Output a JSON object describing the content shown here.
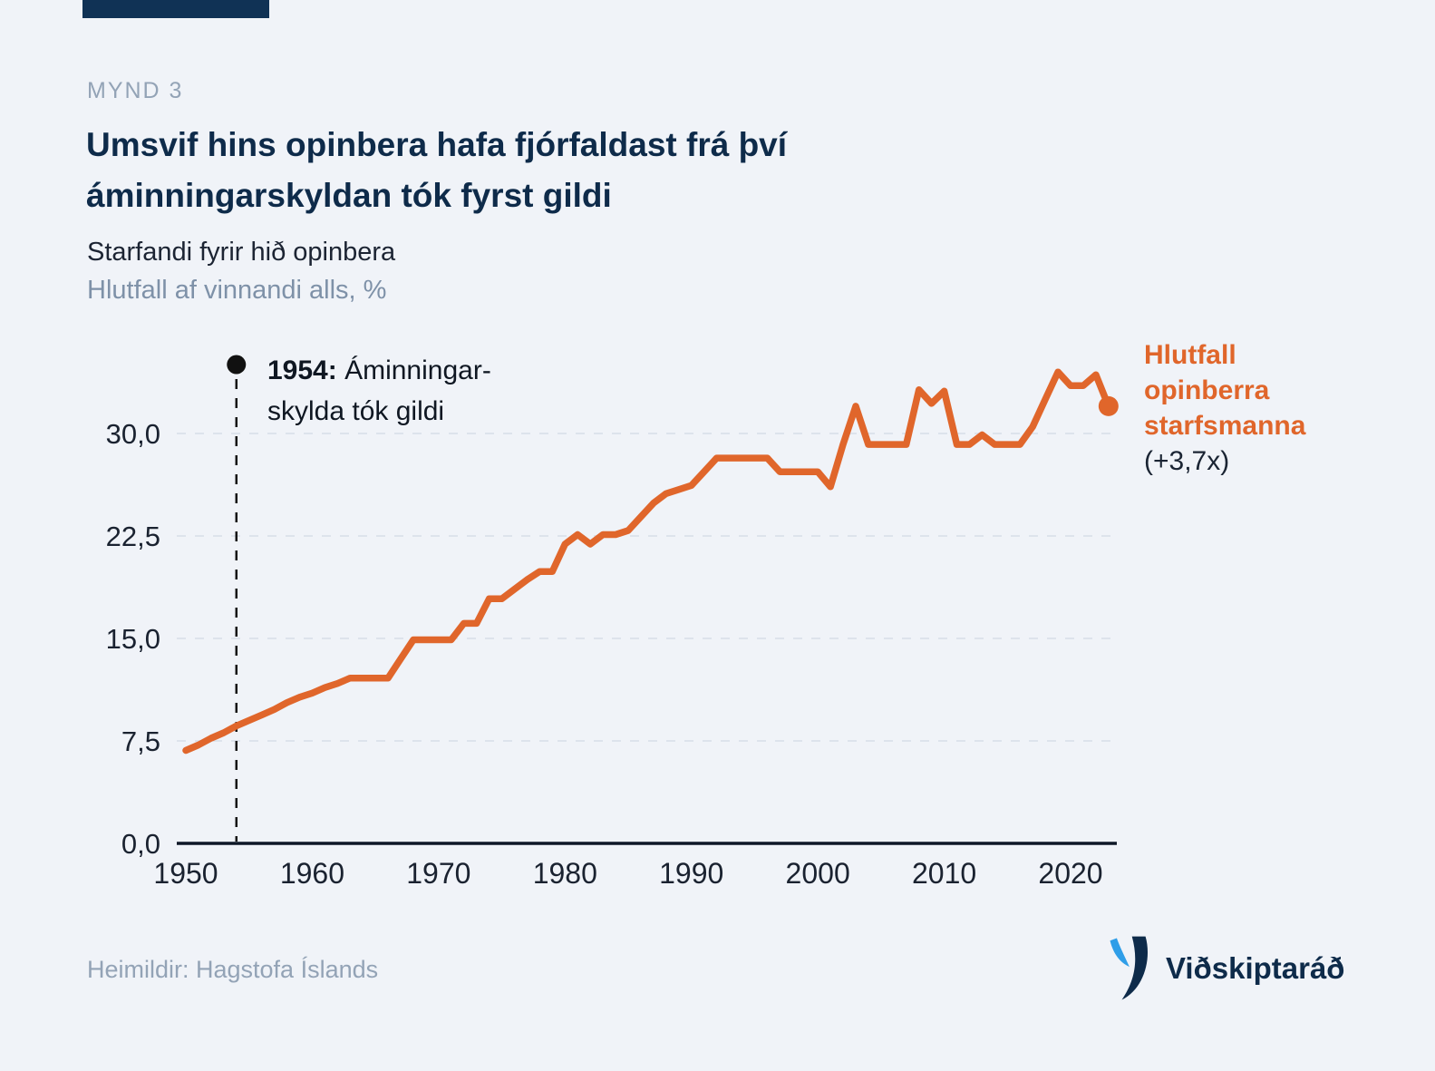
{
  "header": {
    "kicker": "MYND 3"
  },
  "footer": {
    "source": "Heimildir: Hagstofa Íslands"
  },
  "logo": {
    "text": "Viðskiptaráð"
  },
  "colors": {
    "navy": "#0e2b4a",
    "orange": "#E0662B",
    "background": "#f0f3f8",
    "grid": "#dde3ec",
    "axis": "#0e1827"
  },
  "chart_data": {
    "type": "line",
    "title": "Umsvif hins opinbera hafa fjórfaldast frá því áminningarskyldan tók fyrst gildi",
    "title_lines": [
      "Umsvif hins opinbera hafa fjórfaldast frá því",
      "áminningarskyldan tók fyrst gildi"
    ],
    "subtitle": "Starfandi fyrir hið opinbera",
    "ylabel": "Hlutfall af vinnandi alls, %",
    "series_name": "Hlutfall opinberra starfsmanna",
    "line_color": "#E0662B",
    "marker_color": "#111111",
    "grid": "horizontal dashed",
    "ylim": [
      0,
      35
    ],
    "yticks": [
      0,
      7.5,
      15,
      22.5,
      30
    ],
    "ytick_labels": [
      "0,0",
      "7,5",
      "15,0",
      "22,5",
      "30,0"
    ],
    "xticks": [
      1950,
      1960,
      1970,
      1980,
      1990,
      2000,
      2010,
      2020
    ],
    "x": [
      1950,
      1951,
      1952,
      1953,
      1954,
      1955,
      1956,
      1957,
      1958,
      1959,
      1960,
      1961,
      1962,
      1963,
      1964,
      1965,
      1966,
      1967,
      1968,
      1969,
      1970,
      1971,
      1972,
      1973,
      1974,
      1975,
      1976,
      1977,
      1978,
      1979,
      1980,
      1981,
      1982,
      1983,
      1984,
      1985,
      1986,
      1987,
      1988,
      1989,
      1990,
      1991,
      1992,
      1993,
      1994,
      1995,
      1996,
      1997,
      1998,
      1999,
      2000,
      2001,
      2002,
      2003,
      2004,
      2005,
      2006,
      2007,
      2008,
      2009,
      2010,
      2011,
      2012,
      2013,
      2014,
      2015,
      2016,
      2017,
      2018,
      2019,
      2020,
      2021,
      2022,
      2023
    ],
    "values": [
      6.8,
      7.2,
      7.7,
      8.1,
      8.6,
      9.0,
      9.4,
      9.8,
      10.3,
      10.7,
      11.0,
      11.4,
      11.7,
      12.1,
      12.1,
      12.1,
      12.1,
      13.5,
      14.9,
      14.9,
      14.9,
      14.9,
      16.1,
      16.1,
      17.9,
      17.9,
      18.6,
      19.3,
      19.9,
      19.9,
      21.9,
      22.6,
      21.9,
      22.6,
      22.6,
      22.9,
      23.9,
      24.9,
      25.6,
      25.9,
      26.2,
      27.2,
      28.2,
      28.2,
      28.2,
      28.2,
      28.2,
      27.2,
      27.2,
      27.2,
      27.2,
      26.1,
      29.2,
      32.0,
      29.2,
      29.2,
      29.2,
      29.2,
      33.2,
      32.2,
      33.1,
      29.2,
      29.2,
      29.9,
      29.2,
      29.2,
      29.2,
      30.5,
      32.5,
      34.5,
      33.5,
      33.5,
      34.3,
      32.0
    ],
    "annotation": {
      "year": 1954,
      "label_bold": "1954:",
      "label_rest": " Áminningar-",
      "label_line2": "skylda tók gildi"
    },
    "legend": {
      "lines": [
        "Hlutfall",
        "opinberra",
        "starfsmanna"
      ],
      "multiplier": "(+3,7x)",
      "position": "right of line end"
    }
  }
}
